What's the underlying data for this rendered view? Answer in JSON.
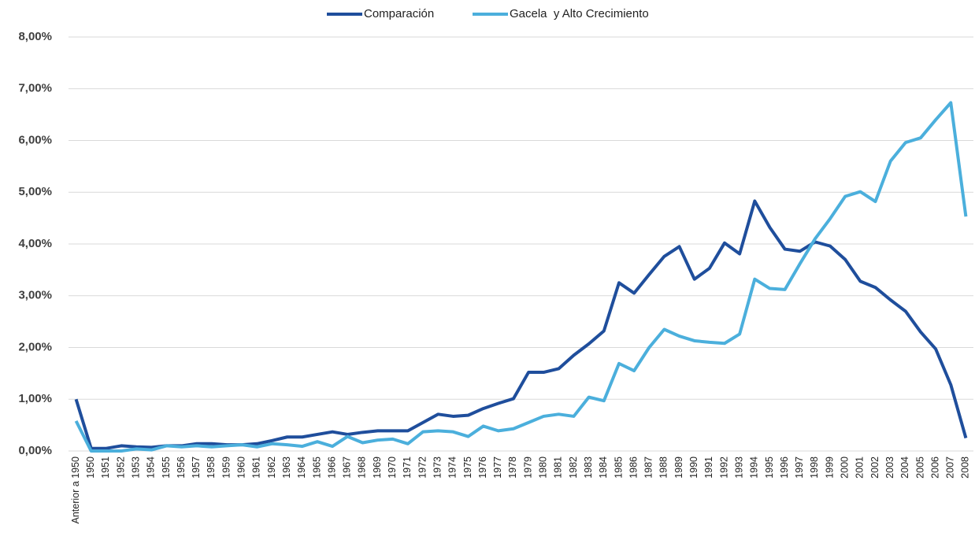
{
  "chart_data": {
    "type": "line",
    "categories": [
      "Anterior a 1950",
      "1950",
      "1951",
      "1952",
      "1953",
      "1954",
      "1955",
      "1956",
      "1957",
      "1958",
      "1959",
      "1960",
      "1961",
      "1962",
      "1963",
      "1964",
      "1965",
      "1966",
      "1967",
      "1968",
      "1969",
      "1970",
      "1971",
      "1972",
      "1973",
      "1974",
      "1975",
      "1976",
      "1977",
      "1978",
      "1979",
      "1980",
      "1981",
      "1982",
      "1983",
      "1984",
      "1985",
      "1986",
      "1987",
      "1988",
      "1989",
      "1990",
      "1991",
      "1992",
      "1993",
      "1994",
      "1995",
      "1996",
      "1997",
      "1998",
      "1999",
      "2000",
      "2001",
      "2002",
      "2003",
      "2004",
      "2005",
      "2006",
      "2007",
      "2008"
    ],
    "series": [
      {
        "name": "Comparación",
        "color": "#1f4e9c",
        "values": [
          1.0,
          0.05,
          0.05,
          0.1,
          0.08,
          0.07,
          0.1,
          0.1,
          0.14,
          0.14,
          0.12,
          0.12,
          0.14,
          0.2,
          0.27,
          0.27,
          0.32,
          0.37,
          0.32,
          0.36,
          0.39,
          0.39,
          0.39,
          0.55,
          0.71,
          0.67,
          0.69,
          0.82,
          0.92,
          1.01,
          1.52,
          1.52,
          1.59,
          1.85,
          2.07,
          2.32,
          3.25,
          3.05,
          3.41,
          3.76,
          3.95,
          3.32,
          3.53,
          4.02,
          3.81,
          4.83,
          4.32,
          3.9,
          3.86,
          4.04,
          3.96,
          3.7,
          3.28,
          3.16,
          2.92,
          2.7,
          2.3,
          1.97,
          1.28,
          0.25
        ]
      },
      {
        "name": "Gacela  y Alto Crecimiento",
        "color": "#4bafdc",
        "values": [
          0.58,
          0.0,
          0.0,
          0.0,
          0.04,
          0.02,
          0.1,
          0.08,
          0.1,
          0.08,
          0.1,
          0.12,
          0.08,
          0.14,
          0.12,
          0.09,
          0.18,
          0.09,
          0.28,
          0.16,
          0.21,
          0.23,
          0.14,
          0.37,
          0.39,
          0.37,
          0.28,
          0.48,
          0.39,
          0.43,
          0.55,
          0.67,
          0.71,
          0.67,
          1.04,
          0.97,
          1.69,
          1.55,
          2.0,
          2.35,
          2.22,
          2.13,
          2.1,
          2.08,
          2.26,
          3.32,
          3.14,
          3.12,
          3.62,
          4.1,
          4.49,
          4.92,
          5.01,
          4.82,
          5.6,
          5.96,
          6.05,
          6.4,
          6.73,
          4.53
        ]
      }
    ],
    "ylim": [
      0,
      8
    ],
    "yticks": [
      {
        "value": 0,
        "label": "0,00%"
      },
      {
        "value": 1,
        "label": "1,00%"
      },
      {
        "value": 2,
        "label": "2,00%"
      },
      {
        "value": 3,
        "label": "3,00%"
      },
      {
        "value": 4,
        "label": "4,00%"
      },
      {
        "value": 5,
        "label": "5,00%"
      },
      {
        "value": 6,
        "label": "6,00%"
      },
      {
        "value": 7,
        "label": "7,00%"
      },
      {
        "value": 8,
        "label": "8,00%"
      }
    ],
    "grid": true,
    "legend": "top"
  }
}
